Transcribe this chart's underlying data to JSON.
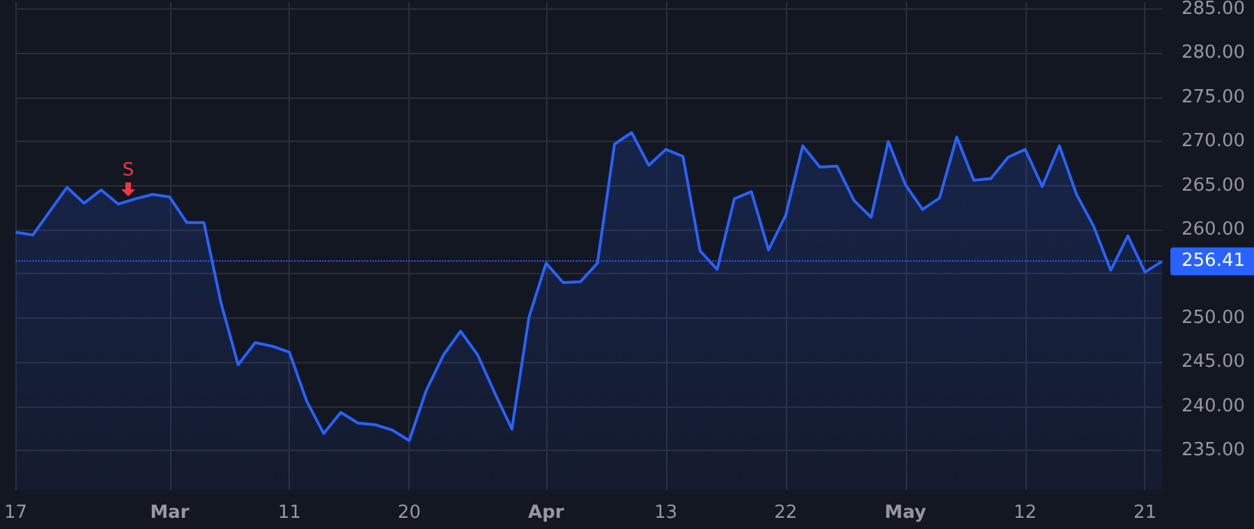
{
  "chart_data": {
    "type": "area",
    "categories": [
      "17",
      null,
      null,
      null,
      null,
      null,
      null,
      null,
      null,
      "Mar",
      null,
      null,
      null,
      null,
      null,
      null,
      "11",
      null,
      null,
      null,
      null,
      null,
      null,
      "20",
      null,
      null,
      null,
      null,
      null,
      null,
      null,
      "Apr",
      null,
      null,
      null,
      null,
      null,
      null,
      "13",
      null,
      null,
      null,
      null,
      null,
      null,
      "22",
      null,
      null,
      null,
      null,
      null,
      null,
      "May",
      null,
      null,
      null,
      null,
      null,
      null,
      "12",
      null,
      null,
      null,
      null,
      null,
      null,
      "21",
      null
    ],
    "series": [
      {
        "color": "#2962ff",
        "values": [
          259.7,
          259.4,
          262.1,
          264.8,
          263.0,
          264.5,
          262.9,
          263.5,
          264.0,
          263.7,
          260.8,
          260.8,
          251.7,
          244.7,
          247.2,
          246.8,
          246.1,
          240.6,
          236.9,
          239.3,
          238.1,
          237.9,
          237.3,
          236.1,
          241.8,
          245.8,
          248.5,
          245.8,
          241.5,
          237.4,
          250.1,
          256.2,
          254.0,
          254.1,
          256.2,
          269.7,
          271.0,
          267.3,
          269.1,
          268.3,
          257.6,
          255.5,
          263.5,
          264.3,
          257.7,
          261.6,
          269.5,
          267.1,
          267.2,
          263.3,
          261.4,
          270.0,
          265.1,
          262.3,
          263.6,
          270.5,
          265.6,
          265.8,
          268.2,
          269.1,
          264.9,
          269.5,
          264.0,
          260.4,
          255.4,
          259.3,
          255.2,
          256.4
        ]
      }
    ],
    "ylim": [
      230.5,
      285.8
    ],
    "yticks": [
      {
        "value": 235,
        "label": "235.00"
      },
      {
        "value": 240,
        "label": "240.00"
      },
      {
        "value": 245,
        "label": "245.00"
      },
      {
        "value": 250,
        "label": "250.00"
      },
      {
        "value": 255,
        "label": null
      },
      {
        "value": 260,
        "label": "260.00"
      },
      {
        "value": 265,
        "label": "265.00"
      },
      {
        "value": 270,
        "label": "270.00"
      },
      {
        "value": 275,
        "label": "275.00"
      },
      {
        "value": 280,
        "label": "280.00"
      },
      {
        "value": 285,
        "label": "285.00"
      }
    ],
    "ref_lines": [
      {
        "axis": "y",
        "value": 256.41,
        "label": "256.41",
        "color": "#2962ff",
        "line_style": "dotted"
      }
    ],
    "annotations": [
      "S"
    ],
    "grid": true,
    "marker": "none",
    "line_style": "solid"
  }
}
